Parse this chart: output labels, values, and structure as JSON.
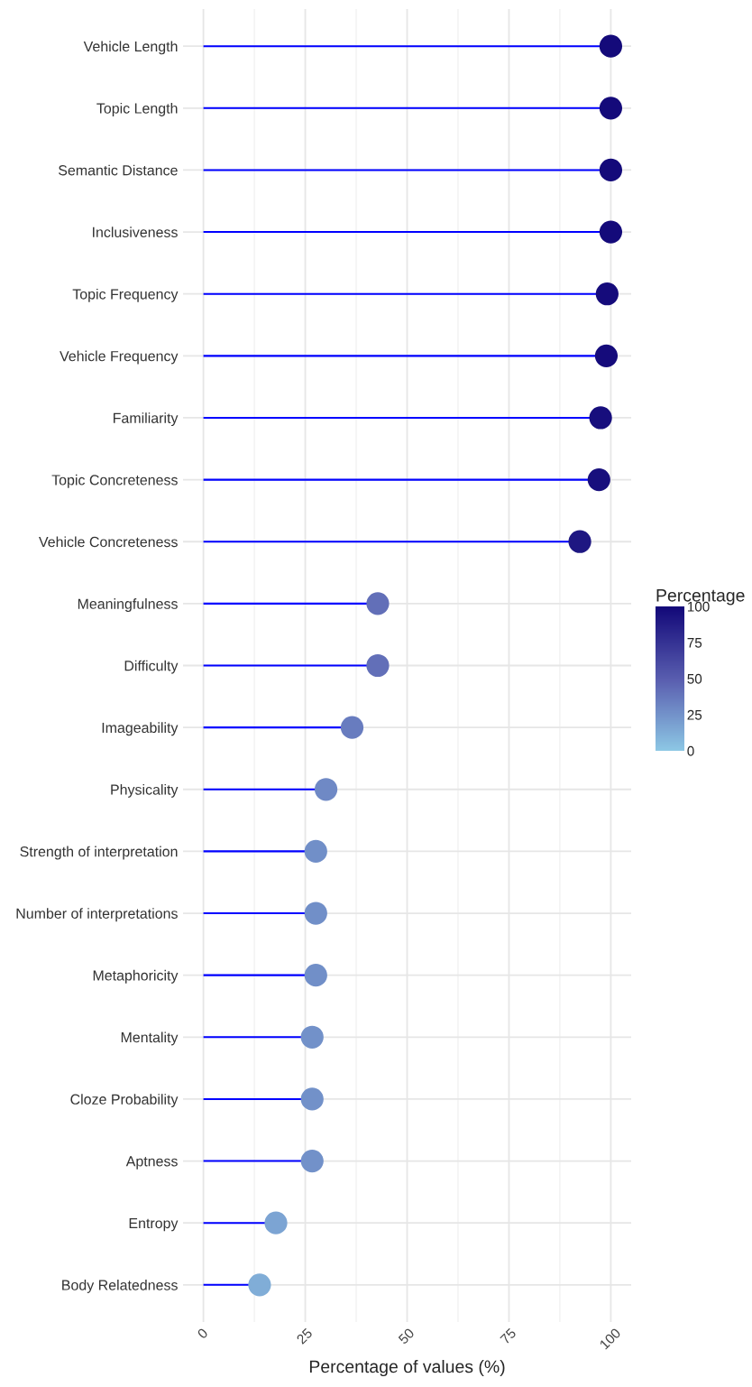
{
  "chart_data": {
    "type": "lollipop",
    "xlabel": "Percentage of values (%)",
    "clabel": "Percentage",
    "categories": [
      "Vehicle Length",
      "Topic Length",
      "Semantic Distance",
      "Inclusiveness",
      "Topic Frequency",
      "Vehicle Frequency",
      "Familiarity",
      "Topic Concreteness",
      "Vehicle Concreteness",
      "Meaningfulness",
      "Difficulty",
      "Imageability",
      "Physicality",
      "Strength of interpretation",
      "Number of interpretations",
      "Metaphoricity",
      "Mentality",
      "Cloze Probability",
      "Aptness",
      "Entropy",
      "Body Relatedness"
    ],
    "orientation": "horizontal",
    "values": [
      100,
      100,
      100,
      100,
      99.1,
      98.9,
      97.5,
      97.1,
      92.4,
      42.8,
      42.8,
      36.5,
      30.1,
      27.6,
      27.6,
      27.6,
      26.7,
      26.7,
      26.7,
      17.8,
      13.8
    ],
    "cvalues": [
      100,
      100,
      100,
      100,
      99.1,
      98.9,
      97.5,
      97.1,
      92.4,
      42.8,
      42.8,
      36.5,
      30.1,
      27.6,
      27.6,
      27.6,
      26.7,
      26.7,
      26.7,
      17.8,
      13.8
    ],
    "clim": [
      0,
      100
    ],
    "cticks": [
      0,
      25,
      50,
      75,
      100
    ],
    "xlim": [
      -5,
      105
    ],
    "xticks": [
      0,
      25,
      50,
      75,
      100
    ],
    "grid": true,
    "marker": "circle"
  }
}
